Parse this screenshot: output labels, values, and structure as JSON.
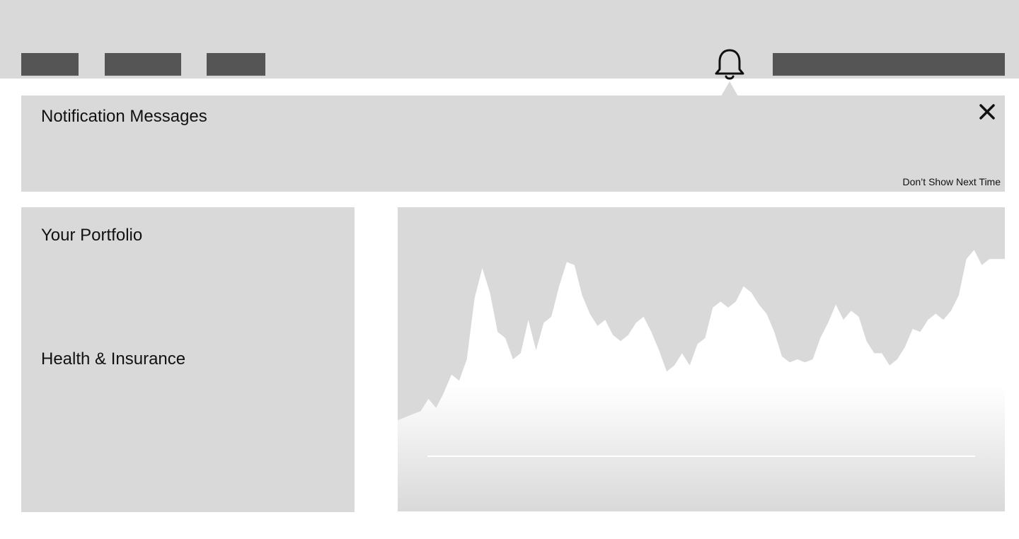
{
  "header": {
    "nav_items": [
      {
        "id": "nav-1"
      },
      {
        "id": "nav-2"
      },
      {
        "id": "nav-3"
      }
    ],
    "bell_icon": "bell-icon",
    "search": {
      "icon": "none"
    }
  },
  "notification": {
    "title": "Notification Messages",
    "close_icon": "close-icon",
    "dont_show_label": "Don’t Show Next Time"
  },
  "portfolio": {
    "title": "Your Portfolio",
    "health_title": "Health & Insurance"
  },
  "colors": {
    "background": "#ffffff",
    "panel": "#d9d9d9",
    "nav_block": "#555555",
    "chart_fill": "#ffffff"
  },
  "chart_data": {
    "type": "area",
    "title": "",
    "xlabel": "",
    "ylabel": "",
    "grid": false,
    "legend": "none",
    "ylim": [
      0,
      100
    ],
    "values": [
      30,
      31,
      32,
      33,
      37,
      34,
      39,
      45,
      43,
      50,
      70,
      80,
      72,
      59,
      57,
      50,
      52,
      63,
      53,
      62,
      64,
      74,
      82,
      81,
      71,
      65,
      61,
      63,
      58,
      56,
      58,
      62,
      64,
      59,
      53,
      46,
      48,
      52,
      48,
      55,
      57,
      67,
      69,
      67,
      69,
      74,
      72,
      68,
      65,
      59,
      51,
      49,
      50,
      49,
      50,
      57,
      62,
      68,
      63,
      66,
      64,
      56,
      52,
      52,
      48,
      50,
      54,
      60,
      59,
      63,
      65,
      63,
      66,
      71,
      83,
      86,
      81,
      83,
      83,
      83
    ]
  }
}
